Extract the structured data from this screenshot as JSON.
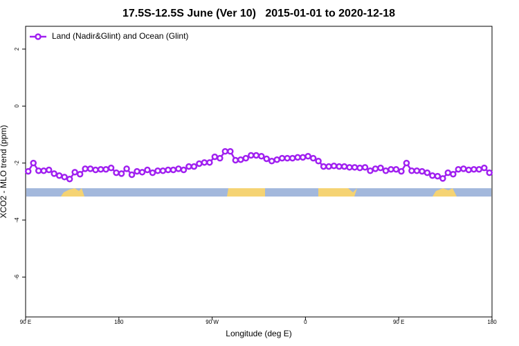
{
  "chart_data": {
    "type": "line",
    "title": "17.5S-12.5S June (Ver 10)   2015-01-01 to 2020-12-18",
    "x_label": "Longitude (deg E)",
    "y_label": "XCO2 - MLO trend (ppm)",
    "xlim": [
      90,
      540
    ],
    "ylim": [
      -7.4,
      2.8
    ],
    "xticks": [
      {
        "value": 90,
        "label": "90 E"
      },
      180,
      {
        "value": 270,
        "label": "90 W"
      },
      {
        "value": 360,
        "label": "0"
      },
      {
        "value": 450,
        "label": "90 E"
      },
      {
        "value": 540,
        "label": "180"
      }
    ],
    "yticks": [
      -6,
      -4,
      -2,
      0,
      2
    ],
    "legend": "topleft",
    "x": [
      92.5,
      97.5,
      102.5,
      107.5,
      112.5,
      117.5,
      122.5,
      127.5,
      132.5,
      137.5,
      142.5,
      147.5,
      152.5,
      157.5,
      162.5,
      167.5,
      172.5,
      177.5,
      182.5,
      187.5,
      192.5,
      197.5,
      202.5,
      207.5,
      212.5,
      217.5,
      222.5,
      227.5,
      232.5,
      237.5,
      242.5,
      247.5,
      252.5,
      257.5,
      262.5,
      267.5,
      272.5,
      277.5,
      282.5,
      287.5,
      292.5,
      297.5,
      302.5,
      307.5,
      312.5,
      317.5,
      322.5,
      327.5,
      332.5,
      337.5,
      342.5,
      347.5,
      352.5,
      357.5,
      362.5,
      367.5,
      372.5,
      377.5,
      382.5,
      387.5,
      392.5,
      397.5,
      402.5,
      407.5,
      412.5,
      417.5,
      422.5,
      427.5,
      432.5,
      437.5,
      442.5,
      447.5,
      452.5,
      457.5,
      462.5,
      467.5,
      472.5,
      477.5,
      482.5,
      487.5,
      492.5,
      497.5,
      502.5,
      507.5,
      512.5,
      517.5,
      522.5,
      527.5,
      532.5,
      537.5
    ],
    "series": [
      {
        "name": "Land (Nadir&Glint) and Ocean (Glint)",
        "color": "#a020f0",
        "values": [
          -2.29,
          -2.0,
          -2.27,
          -2.27,
          -2.24,
          -2.37,
          -2.44,
          -2.49,
          -2.56,
          -2.32,
          -2.39,
          -2.2,
          -2.2,
          -2.24,
          -2.22,
          -2.22,
          -2.17,
          -2.34,
          -2.37,
          -2.2,
          -2.41,
          -2.29,
          -2.32,
          -2.24,
          -2.34,
          -2.27,
          -2.27,
          -2.24,
          -2.24,
          -2.2,
          -2.24,
          -2.12,
          -2.12,
          -2.02,
          -1.98,
          -1.98,
          -1.78,
          -1.83,
          -1.59,
          -1.59,
          -1.9,
          -1.88,
          -1.83,
          -1.73,
          -1.73,
          -1.76,
          -1.85,
          -1.93,
          -1.88,
          -1.83,
          -1.83,
          -1.83,
          -1.8,
          -1.8,
          -1.76,
          -1.83,
          -1.93,
          -2.12,
          -2.12,
          -2.1,
          -2.12,
          -2.12,
          -2.15,
          -2.15,
          -2.17,
          -2.15,
          -2.27,
          -2.2,
          -2.17,
          -2.27,
          -2.22,
          -2.22,
          -2.29,
          -2.0,
          -2.27,
          -2.27,
          -2.29,
          -2.34,
          -2.44,
          -2.46,
          -2.54,
          -2.34,
          -2.39,
          -2.22,
          -2.2,
          -2.24,
          -2.22,
          -2.22,
          -2.17,
          -2.34
        ]
      }
    ]
  }
}
